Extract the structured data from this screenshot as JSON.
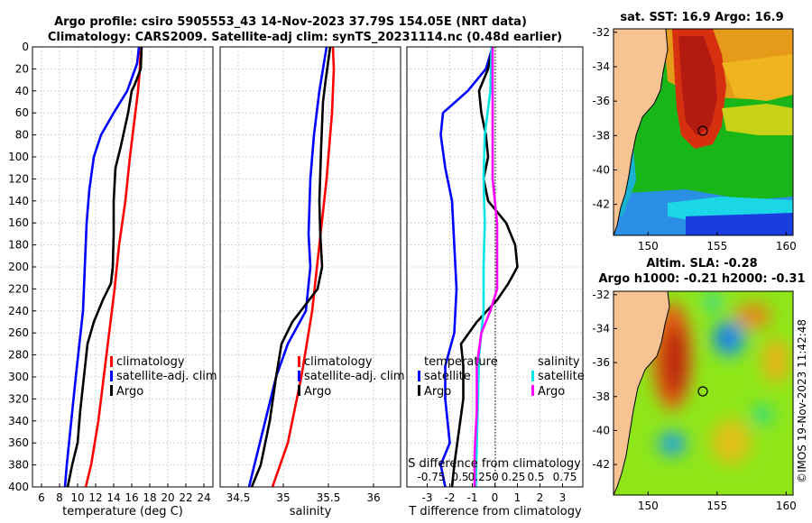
{
  "chart_data": [
    {
      "type": "line",
      "title": "Argo profile: csiro 5905553_43 14-Nov-2023 37.79S 154.05E (NRT data)",
      "subtitle": "Climatology: CARS2009. Satellite-adj clim: synTS_20231114.nc (0.48d earlier)",
      "xlabel": "temperature (deg C)",
      "ylabel": "",
      "xlim": [
        5,
        25
      ],
      "ylim": [
        400,
        0
      ],
      "xticks": [
        6,
        8,
        10,
        12,
        14,
        16,
        18,
        20,
        22,
        24
      ],
      "yticks": [
        0,
        20,
        40,
        60,
        80,
        100,
        120,
        140,
        160,
        180,
        200,
        220,
        240,
        260,
        280,
        300,
        320,
        340,
        360,
        380,
        400
      ],
      "legend": [
        "climatology",
        "satellite-adj. clim",
        "Argo"
      ],
      "series": [
        {
          "name": "climatology",
          "color": "#ff0000",
          "points": [
            [
              17.0,
              0
            ],
            [
              16.9,
              20
            ],
            [
              16.7,
              40
            ],
            [
              16.4,
              60
            ],
            [
              15.8,
              100
            ],
            [
              15.3,
              140
            ],
            [
              14.6,
              180
            ],
            [
              14.1,
              220
            ],
            [
              13.5,
              260
            ],
            [
              12.9,
              300
            ],
            [
              12.3,
              340
            ],
            [
              11.5,
              380
            ],
            [
              10.9,
              400
            ]
          ]
        },
        {
          "name": "satellite-adj. clim",
          "color": "#0000ff",
          "points": [
            [
              16.8,
              0
            ],
            [
              16.6,
              15
            ],
            [
              15.5,
              40
            ],
            [
              14.0,
              60
            ],
            [
              12.6,
              80
            ],
            [
              11.8,
              100
            ],
            [
              11.3,
              130
            ],
            [
              11.0,
              160
            ],
            [
              10.8,
              200
            ],
            [
              10.6,
              240
            ],
            [
              10.2,
              270
            ],
            [
              9.8,
              300
            ],
            [
              9.3,
              340
            ],
            [
              8.8,
              380
            ],
            [
              8.6,
              400
            ]
          ]
        },
        {
          "name": "Argo",
          "color": "#000000",
          "points": [
            [
              17.1,
              0
            ],
            [
              17.0,
              20
            ],
            [
              16.3,
              35
            ],
            [
              16.0,
              40
            ],
            [
              15.6,
              60
            ],
            [
              14.8,
              90
            ],
            [
              14.2,
              110
            ],
            [
              14.0,
              140
            ],
            [
              14.0,
              170
            ],
            [
              13.9,
              200
            ],
            [
              13.7,
              215
            ],
            [
              12.8,
              230
            ],
            [
              11.8,
              250
            ],
            [
              11.1,
              270
            ],
            [
              10.7,
              300
            ],
            [
              10.3,
              330
            ],
            [
              10.0,
              360
            ],
            [
              9.4,
              380
            ],
            [
              8.9,
              400
            ]
          ]
        }
      ]
    },
    {
      "type": "line",
      "xlabel": "salinity",
      "xlim": [
        34.3,
        36.3
      ],
      "ylim": [
        400,
        0
      ],
      "xticks": [
        34.5,
        35,
        35.5,
        36
      ],
      "xtick_labels": [
        "34.5",
        "35",
        "35.5",
        "36"
      ],
      "legend": [
        "climatology",
        "satellite-adj. clim",
        "Argo"
      ],
      "series": [
        {
          "name": "climatology",
          "color": "#ff0000",
          "points": [
            [
              35.55,
              0
            ],
            [
              35.56,
              20
            ],
            [
              35.54,
              60
            ],
            [
              35.48,
              120
            ],
            [
              35.4,
              180
            ],
            [
              35.32,
              240
            ],
            [
              35.2,
              300
            ],
            [
              35.05,
              360
            ],
            [
              34.88,
              400
            ]
          ]
        },
        {
          "name": "satellite-adj. clim",
          "color": "#0000ff",
          "points": [
            [
              35.48,
              0
            ],
            [
              35.4,
              40
            ],
            [
              35.34,
              80
            ],
            [
              35.3,
              120
            ],
            [
              35.28,
              170
            ],
            [
              35.3,
              200
            ],
            [
              35.25,
              240
            ],
            [
              35.05,
              270
            ],
            [
              34.92,
              300
            ],
            [
              34.8,
              340
            ],
            [
              34.68,
              380
            ],
            [
              34.62,
              400
            ]
          ]
        },
        {
          "name": "Argo",
          "color": "#000000",
          "points": [
            [
              35.52,
              0
            ],
            [
              35.47,
              30
            ],
            [
              35.44,
              50
            ],
            [
              35.42,
              90
            ],
            [
              35.4,
              140
            ],
            [
              35.41,
              170
            ],
            [
              35.43,
              200
            ],
            [
              35.38,
              220
            ],
            [
              35.1,
              250
            ],
            [
              34.98,
              270
            ],
            [
              34.92,
              300
            ],
            [
              34.85,
              340
            ],
            [
              34.75,
              380
            ],
            [
              34.65,
              400
            ]
          ]
        }
      ]
    },
    {
      "type": "line",
      "xlabel": "T difference from climatology",
      "top_xlabel": "S difference from climatology",
      "xlim": [
        -3.9,
        3.9
      ],
      "ylim": [
        400,
        0
      ],
      "xticks": [
        -3,
        -2,
        -1,
        0,
        1,
        2,
        3
      ],
      "top_xticks": [
        "-0.75",
        "0.5",
        "0.25",
        "0",
        "0.25",
        "0.5",
        "0.75"
      ],
      "legend_temperature_title": "temperature",
      "legend_salinity_title": "salinity",
      "legend_temperature": [
        "satellite",
        "Argo"
      ],
      "legend_salinity": [
        "satellite",
        "Argo"
      ],
      "series": [
        {
          "name": "T satellite",
          "color": "#0000ff",
          "points": [
            [
              -0.1,
              0
            ],
            [
              -0.4,
              20
            ],
            [
              -1.2,
              40
            ],
            [
              -2.3,
              60
            ],
            [
              -2.4,
              80
            ],
            [
              -2.2,
              110
            ],
            [
              -1.9,
              140
            ],
            [
              -1.8,
              180
            ],
            [
              -1.7,
              220
            ],
            [
              -1.8,
              260
            ],
            [
              -2.2,
              290
            ],
            [
              -2.2,
              320
            ],
            [
              -2.0,
              360
            ],
            [
              -2.4,
              380
            ],
            [
              -2.2,
              400
            ]
          ]
        },
        {
          "name": "T Argo",
          "color": "#000000",
          "points": [
            [
              -0.1,
              0
            ],
            [
              -0.3,
              20
            ],
            [
              -0.7,
              40
            ],
            [
              -0.6,
              60
            ],
            [
              -0.4,
              80
            ],
            [
              -0.3,
              100
            ],
            [
              -0.5,
              120
            ],
            [
              -0.3,
              140
            ],
            [
              0.5,
              160
            ],
            [
              0.9,
              180
            ],
            [
              1.0,
              200
            ],
            [
              0.6,
              215
            ],
            [
              0.1,
              230
            ],
            [
              -0.8,
              250
            ],
            [
              -1.5,
              270
            ],
            [
              -1.4,
              290
            ],
            [
              -1.4,
              320
            ],
            [
              -1.6,
              350
            ],
            [
              -1.8,
              380
            ],
            [
              -1.9,
              400
            ]
          ]
        },
        {
          "name": "S satellite",
          "color": "#00e5e5",
          "points": [
            [
              -0.15,
              0
            ],
            [
              -0.2,
              40
            ],
            [
              -0.45,
              80
            ],
            [
              -0.5,
              120
            ],
            [
              -0.45,
              160
            ],
            [
              -0.5,
              200
            ],
            [
              -0.5,
              240
            ],
            [
              -0.7,
              280
            ],
            [
              -0.75,
              320
            ],
            [
              -0.8,
              360
            ],
            [
              -0.85,
              400
            ]
          ]
        },
        {
          "name": "S Argo",
          "color": "#ff00ff",
          "points": [
            [
              -0.1,
              0
            ],
            [
              -0.1,
              40
            ],
            [
              -0.1,
              80
            ],
            [
              -0.1,
              120
            ],
            [
              0.1,
              160
            ],
            [
              0.1,
              200
            ],
            [
              0.1,
              220
            ],
            [
              -0.2,
              240
            ],
            [
              -0.6,
              260
            ],
            [
              -0.8,
              290
            ],
            [
              -0.8,
              330
            ],
            [
              -0.9,
              370
            ],
            [
              -0.9,
              400
            ]
          ]
        }
      ]
    },
    {
      "type": "heatmap",
      "title": "sat. SST: 16.9 Argo: 16.9",
      "xlim": [
        147.5,
        160.5
      ],
      "ylim": [
        -43.8,
        -31.8
      ],
      "xticks": [
        150,
        155,
        160
      ],
      "yticks": [
        -32,
        -34,
        -36,
        -38,
        -40,
        -42
      ],
      "marker": {
        "lon": 154.05,
        "lat": -37.79
      }
    },
    {
      "type": "heatmap",
      "title": "Altim. SLA: -0.28",
      "subtitle": "Argo h1000: -0.21 h2000: -0.31",
      "xlim": [
        147.5,
        160.5
      ],
      "ylim": [
        -43.8,
        -31.8
      ],
      "xticks": [
        150,
        155,
        160
      ],
      "yticks": [
        -32,
        -34,
        -36,
        -38,
        -40,
        -42
      ],
      "marker": {
        "lon": 154.05,
        "lat": -37.79
      }
    }
  ],
  "credit": "©IMOS 19-Nov-2023 11:42:48"
}
